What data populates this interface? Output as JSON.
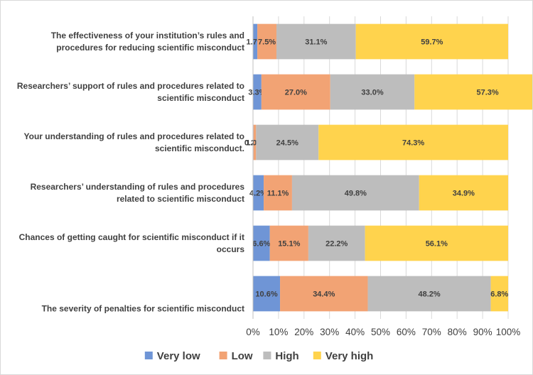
{
  "chart_data": {
    "type": "bar",
    "orientation": "horizontal",
    "stacked": "percent",
    "categories": [
      [
        "The effectiveness of your institution’s rules and",
        "procedures for reducing scientific misconduct"
      ],
      [
        "Researchers’ support of rules and procedures related to",
        "scientific misconduct"
      ],
      [
        "Your understanding of rules and procedures related to",
        "scientific misconduct."
      ],
      [
        "Researchers’ understanding of rules and procedures",
        "related to scientific misconduct"
      ],
      [
        "Chances of getting caught for scientific misconduct if it",
        "occurs"
      ],
      [
        "The severity of penalties for scientific misconduct"
      ]
    ],
    "series": [
      {
        "name": "Very low",
        "color": "#6f95d6",
        "values": [
          1.7,
          3.3,
          0.2,
          4.2,
          6.6,
          10.6
        ],
        "labels": [
          "1.7%",
          "3.3%",
          "0.2%",
          "4.2%",
          "6.6%",
          "10.6%"
        ]
      },
      {
        "name": "Low",
        "color": "#f2a374",
        "values": [
          7.5,
          27.0,
          1.0,
          11.1,
          15.1,
          34.4
        ],
        "labels": [
          "7.5%",
          "27.0%",
          "1.0%",
          "11.1%",
          "15.1%",
          "34.4%"
        ]
      },
      {
        "name": "High",
        "color": "#bdbdbd",
        "values": [
          31.1,
          33.0,
          24.5,
          49.8,
          22.2,
          48.2
        ],
        "labels": [
          "31.1%",
          "33.0%",
          "24.5%",
          "49.8%",
          "22.2%",
          "48.2%"
        ]
      },
      {
        "name": "Very high",
        "color": "#ffd34d",
        "values": [
          59.7,
          57.3,
          74.3,
          34.9,
          56.1,
          6.8
        ],
        "labels": [
          "59.7%",
          "57.3%",
          "74.3%",
          "34.9%",
          "56.1%",
          "6.8%"
        ]
      }
    ],
    "xticks": [
      "0%",
      "10%",
      "20%",
      "30%",
      "40%",
      "50%",
      "60%",
      "70%",
      "80%",
      "90%",
      "100%"
    ],
    "xlim": [
      0,
      100
    ],
    "legend": "bottom",
    "grid": true,
    "title": "",
    "xlabel": "",
    "ylabel": ""
  }
}
